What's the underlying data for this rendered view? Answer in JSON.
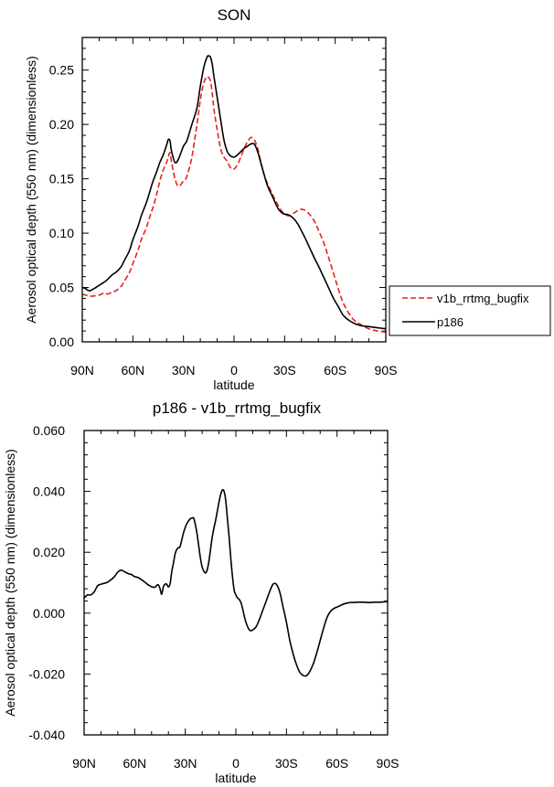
{
  "chart_data": [
    {
      "type": "line",
      "title": "SON",
      "xlabel": "latitude",
      "ylabel": "Aerosol optical depth (550 nm) (dimensionless)",
      "xlim": [
        90,
        -90
      ],
      "ylim": [
        0,
        0.28
      ],
      "x_ticks": [
        90,
        60,
        30,
        0,
        -30,
        -60,
        -90
      ],
      "x_tick_labels": [
        "90N",
        "60N",
        "30N",
        "0",
        "30S",
        "60S",
        "90S"
      ],
      "y_ticks": [
        0,
        0.05,
        0.1,
        0.15,
        0.2,
        0.25
      ],
      "y_tick_labels": [
        "0.00",
        "0.05",
        "0.10",
        "0.15",
        "0.20",
        "0.25"
      ],
      "legend_position": "right",
      "series": [
        {
          "name": "v1b_rrtmg_bugfix",
          "color": "#e8221b",
          "dash": "dashed",
          "x": [
            90,
            88,
            85,
            80,
            77,
            75,
            72,
            70,
            67,
            65,
            62,
            60,
            57,
            55,
            52,
            50,
            48,
            46,
            44,
            42,
            40,
            39,
            38,
            37,
            35,
            33,
            30,
            28,
            25,
            22,
            20,
            18,
            16,
            15,
            14,
            13,
            12,
            10,
            8,
            6,
            4,
            2,
            0,
            -2,
            -4,
            -6,
            -8,
            -10,
            -12,
            -14,
            -16,
            -18,
            -20,
            -23,
            -26,
            -29,
            -32,
            -35,
            -38,
            -40,
            -42,
            -45,
            -48,
            -50,
            -53,
            -56,
            -59,
            -62,
            -65,
            -70,
            -75,
            -80,
            -85,
            -90
          ],
          "values": [
            0.044,
            0.043,
            0.042,
            0.043,
            0.045,
            0.044,
            0.046,
            0.047,
            0.051,
            0.056,
            0.064,
            0.072,
            0.084,
            0.094,
            0.105,
            0.115,
            0.124,
            0.135,
            0.148,
            0.158,
            0.165,
            0.17,
            0.174,
            0.165,
            0.15,
            0.143,
            0.148,
            0.152,
            0.17,
            0.2,
            0.222,
            0.238,
            0.244,
            0.243,
            0.24,
            0.23,
            0.215,
            0.195,
            0.178,
            0.17,
            0.166,
            0.16,
            0.159,
            0.163,
            0.17,
            0.178,
            0.184,
            0.188,
            0.186,
            0.178,
            0.165,
            0.153,
            0.145,
            0.135,
            0.126,
            0.119,
            0.116,
            0.118,
            0.121,
            0.122,
            0.121,
            0.117,
            0.11,
            0.103,
            0.092,
            0.078,
            0.063,
            0.048,
            0.035,
            0.022,
            0.016,
            0.012,
            0.01,
            0.009
          ]
        },
        {
          "name": "p186",
          "color": "#000000",
          "dash": "solid",
          "x": [
            90,
            88,
            86,
            83,
            80,
            78,
            76,
            74,
            72,
            70,
            67,
            65,
            62,
            60,
            57,
            55,
            52,
            50,
            48,
            46,
            44,
            42,
            40,
            39,
            38,
            37,
            35,
            33,
            30,
            28,
            25,
            22,
            20,
            18,
            16,
            15,
            14,
            13,
            12,
            10,
            8,
            6,
            4,
            2,
            0,
            -2,
            -4,
            -6,
            -8,
            -10,
            -12,
            -14,
            -16,
            -18,
            -20,
            -23,
            -26,
            -29,
            -32,
            -35,
            -38,
            -40,
            -42,
            -45,
            -48,
            -50,
            -53,
            -56,
            -59,
            -62,
            -65,
            -70,
            -75,
            -80,
            -85,
            -90
          ],
          "values": [
            0.05,
            0.049,
            0.047,
            0.049,
            0.052,
            0.054,
            0.056,
            0.059,
            0.062,
            0.064,
            0.069,
            0.075,
            0.084,
            0.094,
            0.106,
            0.116,
            0.128,
            0.138,
            0.148,
            0.156,
            0.165,
            0.172,
            0.181,
            0.186,
            0.185,
            0.175,
            0.165,
            0.168,
            0.18,
            0.185,
            0.2,
            0.215,
            0.235,
            0.252,
            0.262,
            0.263,
            0.262,
            0.256,
            0.245,
            0.225,
            0.205,
            0.186,
            0.175,
            0.171,
            0.17,
            0.172,
            0.175,
            0.178,
            0.18,
            0.182,
            0.182,
            0.175,
            0.164,
            0.153,
            0.143,
            0.133,
            0.123,
            0.118,
            0.117,
            0.114,
            0.108,
            0.102,
            0.096,
            0.086,
            0.076,
            0.07,
            0.06,
            0.05,
            0.04,
            0.032,
            0.024,
            0.018,
            0.015,
            0.014,
            0.013,
            0.012
          ]
        }
      ]
    },
    {
      "type": "line",
      "title": "p186 - v1b_rrtmg_bugfix",
      "xlabel": "latitude",
      "ylabel": "Aerosol optical depth (550 nm) (dimensionless)",
      "xlim": [
        90,
        -90
      ],
      "ylim": [
        -0.04,
        0.06
      ],
      "x_ticks": [
        90,
        60,
        30,
        0,
        -30,
        -60,
        -90
      ],
      "x_tick_labels": [
        "90N",
        "60N",
        "30N",
        "0",
        "30S",
        "60S",
        "90S"
      ],
      "y_ticks": [
        -0.04,
        -0.02,
        0.0,
        0.02,
        0.04,
        0.06
      ],
      "y_tick_labels": [
        "-0.040",
        "-0.020",
        "0.000",
        "0.020",
        "0.040",
        "0.060"
      ],
      "series": [
        {
          "name": "p186 - v1b_rrtmg_bugfix",
          "color": "#000000",
          "dash": "solid",
          "x": [
            90,
            89,
            88,
            86,
            84,
            82,
            80,
            78,
            76,
            74,
            72,
            70,
            68,
            66,
            64,
            62,
            60,
            58,
            56,
            54,
            52,
            50,
            48,
            47,
            46,
            45,
            44,
            43,
            42,
            41,
            40,
            39,
            38,
            37,
            36,
            35,
            34,
            33,
            31,
            29,
            27,
            26,
            25,
            24,
            23,
            22,
            21,
            20,
            19,
            18,
            17,
            16,
            15,
            14,
            13,
            12,
            11,
            10,
            9,
            8,
            7,
            6,
            5,
            4,
            3,
            2,
            1,
            0,
            -1,
            -2,
            -3,
            -4,
            -5,
            -6,
            -7,
            -8,
            -9,
            -10,
            -12,
            -14,
            -16,
            -18,
            -20,
            -22,
            -24,
            -26,
            -28,
            -30,
            -32,
            -34,
            -36,
            -38,
            -40,
            -42,
            -44,
            -46,
            -48,
            -50,
            -52,
            -54,
            -56,
            -58,
            -60,
            -62,
            -64,
            -66,
            -68,
            -70,
            -72,
            -74,
            -76,
            -78,
            -80,
            -82,
            -84,
            -86,
            -88,
            -90
          ],
          "values": [
            0.005,
            0.0055,
            0.006,
            0.006,
            0.007,
            0.009,
            0.0095,
            0.0098,
            0.0102,
            0.011,
            0.012,
            0.0135,
            0.0141,
            0.0136,
            0.013,
            0.0127,
            0.012,
            0.0117,
            0.011,
            0.0102,
            0.0093,
            0.0087,
            0.0085,
            0.0091,
            0.0093,
            0.0081,
            0.0062,
            0.0086,
            0.0095,
            0.0095,
            0.0086,
            0.0097,
            0.0137,
            0.0165,
            0.0195,
            0.021,
            0.0215,
            0.022,
            0.0265,
            0.0295,
            0.031,
            0.0312,
            0.0312,
            0.029,
            0.026,
            0.022,
            0.018,
            0.0152,
            0.0138,
            0.0132,
            0.0142,
            0.017,
            0.021,
            0.025,
            0.028,
            0.0305,
            0.0335,
            0.0365,
            0.039,
            0.0405,
            0.04,
            0.037,
            0.031,
            0.025,
            0.018,
            0.012,
            0.0075,
            0.006,
            0.005,
            0.0045,
            0.0035,
            0.0015,
            -0.001,
            -0.003,
            -0.0045,
            -0.0055,
            -0.0058,
            -0.0055,
            -0.0045,
            -0.002,
            0.001,
            0.004,
            0.007,
            0.0095,
            0.0095,
            0.007,
            0.002,
            -0.003,
            -0.009,
            -0.0135,
            -0.017,
            -0.0195,
            -0.0205,
            -0.0205,
            -0.019,
            -0.0165,
            -0.013,
            -0.009,
            -0.005,
            -0.0015,
            0.0005,
            0.0015,
            0.002,
            0.0025,
            0.003,
            0.0033,
            0.0035,
            0.0035,
            0.0036,
            0.0036,
            0.0036,
            0.0035,
            0.0035,
            0.0036,
            0.0036,
            0.0036,
            0.0037,
            0.0038
          ]
        }
      ]
    }
  ]
}
